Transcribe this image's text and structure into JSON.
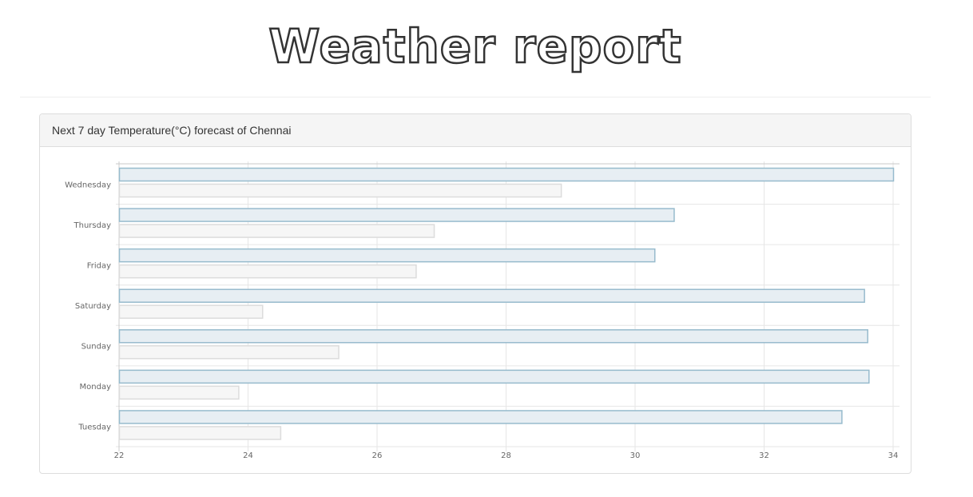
{
  "page": {
    "title": "Weather report"
  },
  "panel": {
    "heading": "Next 7 day Temperature(°C) forecast of Chennai"
  },
  "chart_data": {
    "type": "bar",
    "orientation": "horizontal",
    "categories": [
      "Wednesday",
      "Thursday",
      "Friday",
      "Saturday",
      "Sunday",
      "Monday",
      "Tuesday"
    ],
    "series": [
      {
        "values": [
          34.0,
          30.6,
          30.3,
          33.55,
          33.6,
          33.62,
          33.2
        ],
        "color": "#97bbcd",
        "fill": "#e7eef3"
      },
      {
        "values": [
          28.85,
          26.88,
          26.6,
          24.22,
          25.4,
          23.85,
          24.5
        ],
        "color": "#dcdcdc",
        "fill": "#f6f6f6"
      }
    ],
    "xlim": [
      22,
      34
    ],
    "xticks": [
      "22",
      "24",
      "26",
      "28",
      "30",
      "32",
      "34"
    ],
    "grid": true,
    "title": "",
    "xlabel": "",
    "ylabel": ""
  }
}
